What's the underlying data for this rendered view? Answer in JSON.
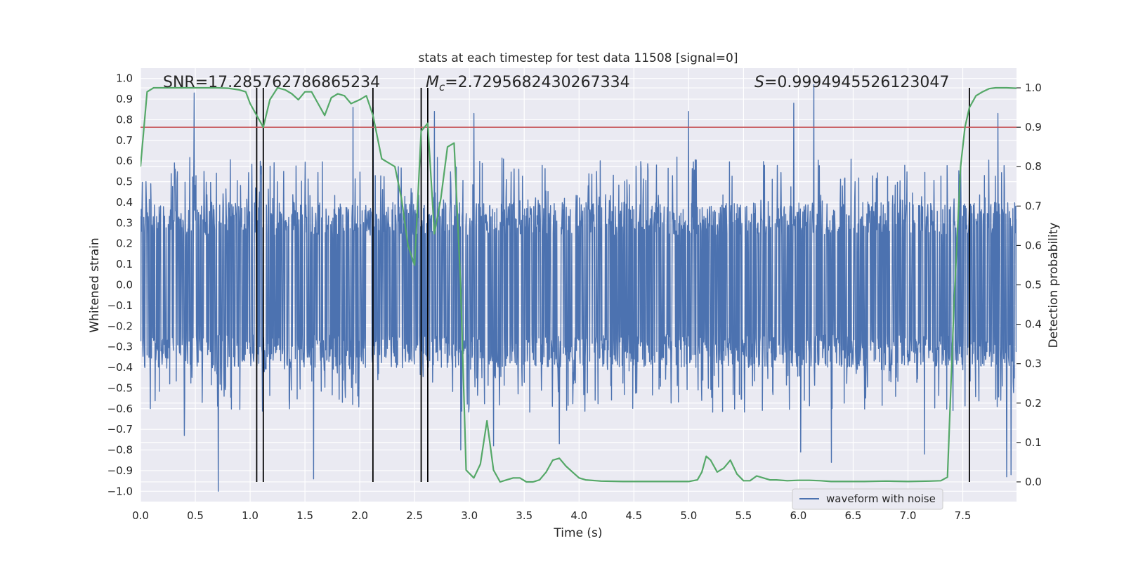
{
  "chart_data": {
    "type": "line",
    "title": "stats at each timestep for test data 11508 [signal=0]",
    "xlabel": "Time (s)",
    "ylabel_left": "Whitened strain",
    "ylabel_right": "Detection probability",
    "xlim": [
      0.0,
      7.99
    ],
    "ylim_left": [
      -1.05,
      1.05
    ],
    "ylim_right": [
      -0.05,
      1.05
    ],
    "x_ticks": [
      "0.0",
      "0.5",
      "1.0",
      "1.5",
      "2.0",
      "2.5",
      "3.0",
      "3.5",
      "4.0",
      "4.5",
      "5.0",
      "5.5",
      "6.0",
      "6.5",
      "7.0",
      "7.5"
    ],
    "y_left_ticks": [
      "1.0",
      "0.9",
      "0.8",
      "0.7",
      "0.6",
      "0.5",
      "0.4",
      "0.3",
      "0.2",
      "0.1",
      "0.0",
      "-0.1",
      "-0.2",
      "-0.3",
      "-0.4",
      "-0.5",
      "-0.6",
      "-0.7",
      "-0.8",
      "-0.9",
      "-1.0"
    ],
    "y_right_ticks": [
      "1.0",
      "0.9",
      "0.8",
      "0.7",
      "0.6",
      "0.5",
      "0.4",
      "0.3",
      "0.2",
      "0.1",
      "0.0"
    ],
    "grid": true,
    "legend": {
      "location": "lower-right",
      "entries": [
        "waveform with noise"
      ]
    },
    "annotations": {
      "snr": "SNR=17.285762786865234",
      "mc_symbol": "M",
      "mc_sub": "c",
      "mc_value": "=2.7295682430267334",
      "s_symbol": "S",
      "s_value": "=0.9994945526123047"
    },
    "threshold": {
      "axis": "right",
      "value": 0.9,
      "color": "#c44e52"
    },
    "vertical_markers": [
      1.06,
      1.12,
      2.12,
      2.56,
      2.62,
      7.56
    ],
    "waveform": {
      "name": "waveform with noise",
      "color": "#4c72b0",
      "description": "whitened strain noise, band mostly within ±0.38 with spikes",
      "outliers": [
        {
          "x": 0.49,
          "y": 0.93
        },
        {
          "x": 0.71,
          "y": -1.0
        },
        {
          "x": 0.4,
          "y": -0.73
        },
        {
          "x": 1.58,
          "y": -0.94
        },
        {
          "x": 1.94,
          "y": 0.86
        },
        {
          "x": 2.12,
          "y": 0.86
        },
        {
          "x": 3.04,
          "y": 0.83
        },
        {
          "x": 3.22,
          "y": -0.78
        },
        {
          "x": 3.82,
          "y": -0.77
        },
        {
          "x": 5.0,
          "y": 0.84
        },
        {
          "x": 5.96,
          "y": 0.88
        },
        {
          "x": 6.14,
          "y": 0.97
        },
        {
          "x": 6.3,
          "y": -0.86
        },
        {
          "x": 7.15,
          "y": -0.82
        },
        {
          "x": 7.82,
          "y": 0.83
        },
        {
          "x": 7.9,
          "y": -0.93
        },
        {
          "x": 7.94,
          "y": -0.92
        },
        {
          "x": 2.68,
          "y": 0.84
        },
        {
          "x": 2.92,
          "y": -0.8
        },
        {
          "x": 6.02,
          "y": -0.81
        }
      ]
    },
    "probability": {
      "name": "detection probability",
      "color": "#55a868",
      "x": [
        0.0,
        0.06,
        0.12,
        0.2,
        0.3,
        0.4,
        0.5,
        0.6,
        0.7,
        0.8,
        0.9,
        0.96,
        1.0,
        1.06,
        1.12,
        1.18,
        1.25,
        1.32,
        1.38,
        1.44,
        1.5,
        1.56,
        1.62,
        1.68,
        1.74,
        1.8,
        1.86,
        1.92,
        2.0,
        2.06,
        2.12,
        2.2,
        2.26,
        2.32,
        2.38,
        2.44,
        2.5,
        2.56,
        2.62,
        2.68,
        2.74,
        2.8,
        2.86,
        2.92,
        2.97,
        3.04,
        3.1,
        3.16,
        3.22,
        3.28,
        3.34,
        3.4,
        3.46,
        3.52,
        3.58,
        3.64,
        3.7,
        3.76,
        3.82,
        3.88,
        3.94,
        4.0,
        4.06,
        4.2,
        4.4,
        4.6,
        4.8,
        5.0,
        5.08,
        5.12,
        5.16,
        5.2,
        5.26,
        5.32,
        5.38,
        5.44,
        5.5,
        5.56,
        5.62,
        5.68,
        5.74,
        5.8,
        5.9,
        6.0,
        6.1,
        6.2,
        6.3,
        6.4,
        6.6,
        6.8,
        7.0,
        7.2,
        7.3,
        7.36,
        7.42,
        7.48,
        7.52,
        7.56,
        7.62,
        7.68,
        7.74,
        7.8,
        7.9,
        7.99
      ],
      "y": [
        0.8,
        0.99,
        1.0,
        1.0,
        1.0,
        1.0,
        1.0,
        1.0,
        1.0,
        0.999,
        0.995,
        0.99,
        0.96,
        0.93,
        0.9,
        0.97,
        1.0,
        0.995,
        0.985,
        0.97,
        0.99,
        0.99,
        0.96,
        0.93,
        0.975,
        0.985,
        0.98,
        0.96,
        0.97,
        0.98,
        0.93,
        0.82,
        0.81,
        0.8,
        0.72,
        0.6,
        0.55,
        0.89,
        0.91,
        0.63,
        0.72,
        0.85,
        0.86,
        0.5,
        0.03,
        0.01,
        0.045,
        0.155,
        0.03,
        0.0,
        0.005,
        0.01,
        0.01,
        0.0,
        0.0,
        0.005,
        0.025,
        0.055,
        0.06,
        0.04,
        0.025,
        0.01,
        0.005,
        0.002,
        0.001,
        0.001,
        0.001,
        0.001,
        0.005,
        0.025,
        0.065,
        0.055,
        0.025,
        0.035,
        0.055,
        0.02,
        0.003,
        0.003,
        0.015,
        0.01,
        0.005,
        0.005,
        0.003,
        0.004,
        0.004,
        0.003,
        0.001,
        0.001,
        0.001,
        0.002,
        0.001,
        0.002,
        0.003,
        0.012,
        0.45,
        0.8,
        0.9,
        0.95,
        0.98,
        0.99,
        0.998,
        1.0,
        1.0,
        0.999
      ]
    }
  }
}
